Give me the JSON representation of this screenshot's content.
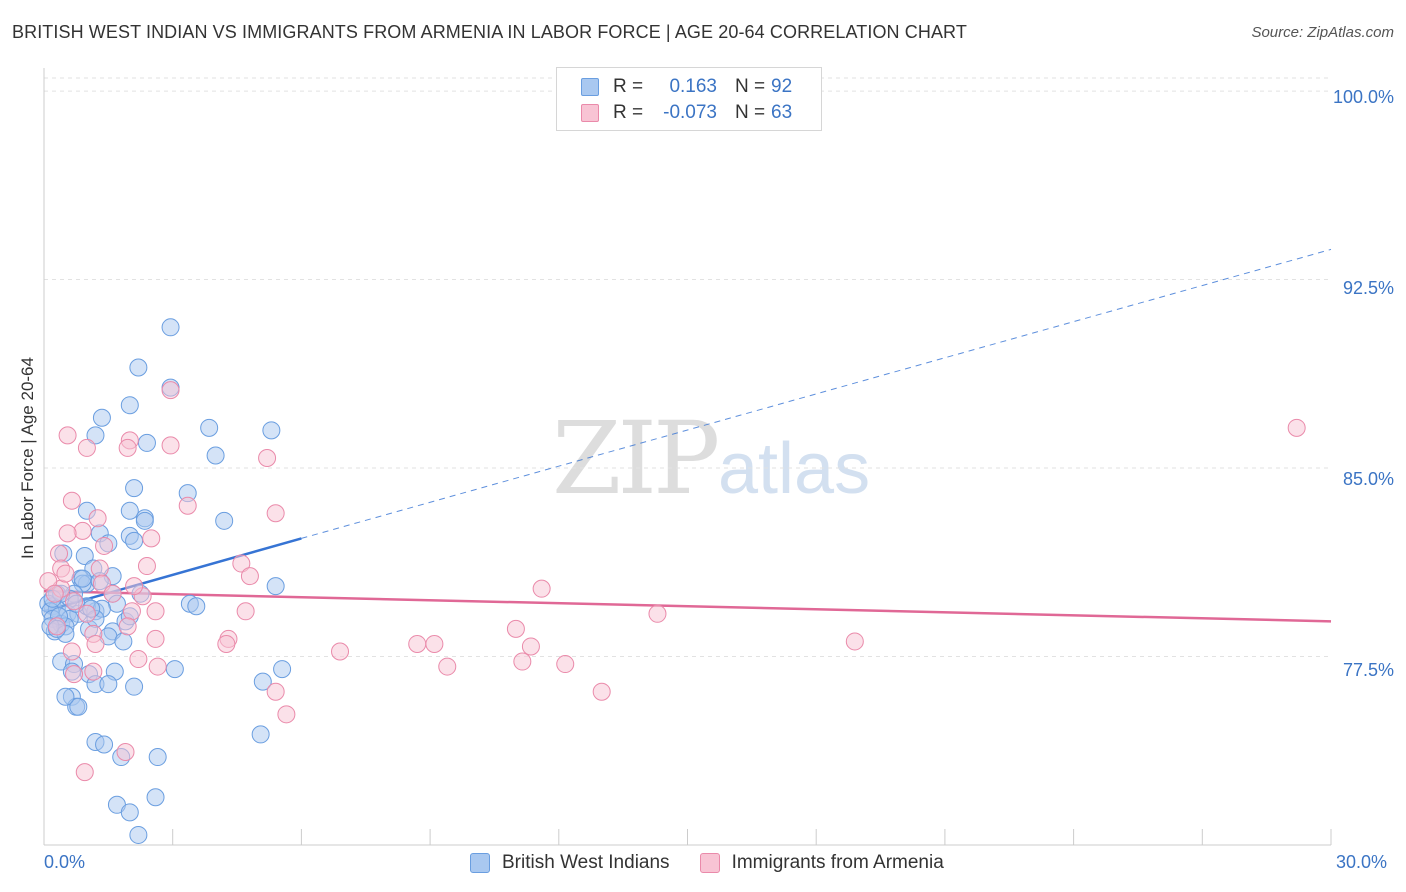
{
  "title": "BRITISH WEST INDIAN VS IMMIGRANTS FROM ARMENIA IN LABOR FORCE | AGE 20-64 CORRELATION CHART",
  "source": "Source: ZipAtlas.com",
  "watermark": {
    "zip": "ZIP",
    "atlas": "atlas"
  },
  "legend": {
    "rows": [
      {
        "r_label": "R =",
        "r_value": "0.163",
        "n_label": "N =",
        "n_value": "92",
        "color": "#a9c8f0",
        "border": "#6a9ee0"
      },
      {
        "r_label": "R =",
        "r_value": "-0.073",
        "n_label": "N =",
        "n_value": "63",
        "color": "#f8c4d4",
        "border": "#ea8aaa"
      }
    ]
  },
  "colors": {
    "blue_fill": "#a9c8f0",
    "blue_stroke": "#6a9ee0",
    "blue_line": "#3674d4",
    "pink_fill": "#f8c4d4",
    "pink_stroke": "#ea8aaa",
    "pink_line": "#e06896",
    "grid": "#e2e2e2",
    "tick_text": "#3b74c4"
  },
  "chart_data": {
    "type": "scatter",
    "title": "BRITISH WEST INDIAN VS IMMIGRANTS FROM ARMENIA IN LABOR FORCE | AGE 20-64 CORRELATION CHART",
    "xlabel": "",
    "ylabel": "In Labor Force | Age 20-64",
    "xlim": [
      0,
      30
    ],
    "ylim": [
      70.0,
      100.6
    ],
    "y_ticks": [
      {
        "value": 100.0,
        "label": "100.0%"
      },
      {
        "value": 92.5,
        "label": "92.5%"
      },
      {
        "value": 85.0,
        "label": "85.0%"
      },
      {
        "value": 77.5,
        "label": "77.5%"
      }
    ],
    "x_tick_labels": {
      "min": "0.0%",
      "max": "30.0%"
    },
    "x_minor_ticks": [
      3,
      6,
      9,
      12,
      15,
      18,
      21,
      24,
      27,
      30
    ],
    "series": [
      {
        "name": "British West Indians",
        "R": 0.163,
        "N": 92,
        "trend": {
          "solid": [
            [
              0,
              79.3
            ],
            [
              6.0,
              82.2
            ]
          ],
          "dashed": [
            [
              6.0,
              82.2
            ],
            [
              30,
              93.7
            ]
          ]
        },
        "points": [
          [
            2.95,
            90.6
          ],
          [
            2.2,
            89.0
          ],
          [
            2.95,
            88.2
          ],
          [
            2.0,
            87.5
          ],
          [
            1.35,
            87.0
          ],
          [
            3.85,
            86.6
          ],
          [
            5.3,
            86.5
          ],
          [
            1.2,
            86.3
          ],
          [
            2.4,
            86.0
          ],
          [
            4.0,
            85.5
          ],
          [
            2.1,
            84.2
          ],
          [
            3.35,
            84.0
          ],
          [
            1.0,
            83.3
          ],
          [
            2.0,
            83.3
          ],
          [
            2.35,
            83.0
          ],
          [
            2.35,
            82.9
          ],
          [
            4.2,
            82.9
          ],
          [
            1.3,
            82.4
          ],
          [
            2.0,
            82.3
          ],
          [
            1.5,
            82.0
          ],
          [
            0.95,
            81.5
          ],
          [
            0.45,
            81.6
          ],
          [
            2.1,
            82.1
          ],
          [
            1.15,
            81.0
          ],
          [
            0.85,
            80.6
          ],
          [
            1.6,
            80.7
          ],
          [
            1.0,
            80.4
          ],
          [
            0.9,
            80.4
          ],
          [
            1.3,
            80.5
          ],
          [
            5.4,
            80.3
          ],
          [
            0.3,
            80.0
          ],
          [
            0.7,
            80.0
          ],
          [
            1.6,
            80.0
          ],
          [
            2.25,
            80.0
          ],
          [
            0.2,
            79.5
          ],
          [
            0.6,
            79.8
          ],
          [
            0.1,
            79.6
          ],
          [
            0.3,
            79.4
          ],
          [
            0.15,
            79.3
          ],
          [
            0.55,
            79.2
          ],
          [
            0.8,
            79.2
          ],
          [
            1.2,
            79.3
          ],
          [
            1.0,
            79.5
          ],
          [
            1.7,
            79.6
          ],
          [
            1.35,
            79.4
          ],
          [
            3.4,
            79.6
          ],
          [
            3.55,
            79.5
          ],
          [
            0.2,
            79.0
          ],
          [
            0.4,
            78.8
          ],
          [
            0.6,
            79.0
          ],
          [
            0.25,
            78.5
          ],
          [
            0.5,
            78.7
          ],
          [
            1.05,
            78.6
          ],
          [
            1.6,
            78.5
          ],
          [
            1.9,
            78.9
          ],
          [
            0.5,
            78.4
          ],
          [
            1.5,
            78.3
          ],
          [
            1.85,
            78.1
          ],
          [
            0.4,
            77.3
          ],
          [
            0.7,
            77.2
          ],
          [
            0.65,
            76.9
          ],
          [
            1.05,
            76.8
          ],
          [
            1.65,
            76.9
          ],
          [
            3.05,
            77.0
          ],
          [
            5.55,
            77.0
          ],
          [
            1.2,
            76.4
          ],
          [
            1.5,
            76.4
          ],
          [
            2.1,
            76.3
          ],
          [
            5.1,
            76.5
          ],
          [
            0.65,
            75.9
          ],
          [
            0.75,
            75.5
          ],
          [
            0.8,
            75.5
          ],
          [
            1.2,
            74.1
          ],
          [
            1.4,
            74.0
          ],
          [
            1.8,
            73.5
          ],
          [
            2.65,
            73.5
          ],
          [
            5.05,
            74.4
          ],
          [
            0.5,
            75.9
          ],
          [
            1.7,
            71.6
          ],
          [
            2.0,
            71.3
          ],
          [
            2.6,
            71.9
          ],
          [
            2.2,
            70.4
          ],
          [
            0.9,
            80.6
          ],
          [
            0.4,
            80.0
          ],
          [
            0.2,
            79.8
          ],
          [
            0.35,
            79.1
          ],
          [
            0.75,
            79.6
          ],
          [
            1.2,
            79.0
          ],
          [
            0.15,
            78.7
          ],
          [
            0.3,
            78.6
          ],
          [
            2.0,
            79.1
          ],
          [
            1.1,
            79.4
          ]
        ]
      },
      {
        "name": "Immigrants from Armenia",
        "R": -0.073,
        "N": 63,
        "trend": {
          "solid": [
            [
              0,
              80.1
            ],
            [
              30,
              78.9
            ]
          ]
        },
        "points": [
          [
            29.2,
            86.6
          ],
          [
            2.95,
            88.1
          ],
          [
            0.55,
            86.3
          ],
          [
            2.0,
            86.1
          ],
          [
            2.95,
            85.9
          ],
          [
            1.95,
            85.8
          ],
          [
            1.0,
            85.8
          ],
          [
            5.2,
            85.4
          ],
          [
            0.65,
            83.7
          ],
          [
            3.35,
            83.5
          ],
          [
            5.4,
            83.2
          ],
          [
            1.25,
            83.0
          ],
          [
            0.9,
            82.5
          ],
          [
            0.55,
            82.4
          ],
          [
            2.5,
            82.2
          ],
          [
            0.35,
            81.6
          ],
          [
            4.6,
            81.2
          ],
          [
            2.4,
            81.1
          ],
          [
            1.3,
            81.0
          ],
          [
            0.4,
            81.0
          ],
          [
            4.8,
            80.7
          ],
          [
            11.6,
            80.2
          ],
          [
            1.35,
            80.4
          ],
          [
            0.4,
            80.2
          ],
          [
            0.1,
            80.5
          ],
          [
            0.25,
            80.0
          ],
          [
            1.6,
            80.0
          ],
          [
            2.3,
            79.9
          ],
          [
            0.7,
            79.7
          ],
          [
            2.05,
            79.3
          ],
          [
            1.0,
            79.2
          ],
          [
            2.6,
            79.3
          ],
          [
            4.7,
            79.3
          ],
          [
            14.3,
            79.2
          ],
          [
            11.0,
            78.6
          ],
          [
            1.95,
            78.7
          ],
          [
            0.3,
            78.7
          ],
          [
            1.15,
            78.4
          ],
          [
            4.3,
            78.2
          ],
          [
            4.25,
            78.0
          ],
          [
            2.6,
            78.2
          ],
          [
            8.7,
            78.0
          ],
          [
            9.1,
            78.0
          ],
          [
            11.35,
            77.9
          ],
          [
            6.9,
            77.7
          ],
          [
            18.9,
            78.1
          ],
          [
            0.65,
            77.7
          ],
          [
            1.2,
            78.0
          ],
          [
            2.2,
            77.4
          ],
          [
            9.4,
            77.1
          ],
          [
            11.15,
            77.3
          ],
          [
            12.15,
            77.2
          ],
          [
            2.65,
            77.1
          ],
          [
            0.7,
            76.8
          ],
          [
            5.4,
            76.1
          ],
          [
            13.0,
            76.1
          ],
          [
            5.65,
            75.2
          ],
          [
            1.9,
            73.7
          ],
          [
            0.95,
            72.9
          ],
          [
            1.15,
            76.9
          ],
          [
            0.5,
            80.8
          ],
          [
            1.4,
            81.9
          ],
          [
            2.1,
            80.3
          ]
        ]
      }
    ]
  },
  "bottom_legend": [
    "British West Indians",
    "Immigrants from Armenia"
  ]
}
